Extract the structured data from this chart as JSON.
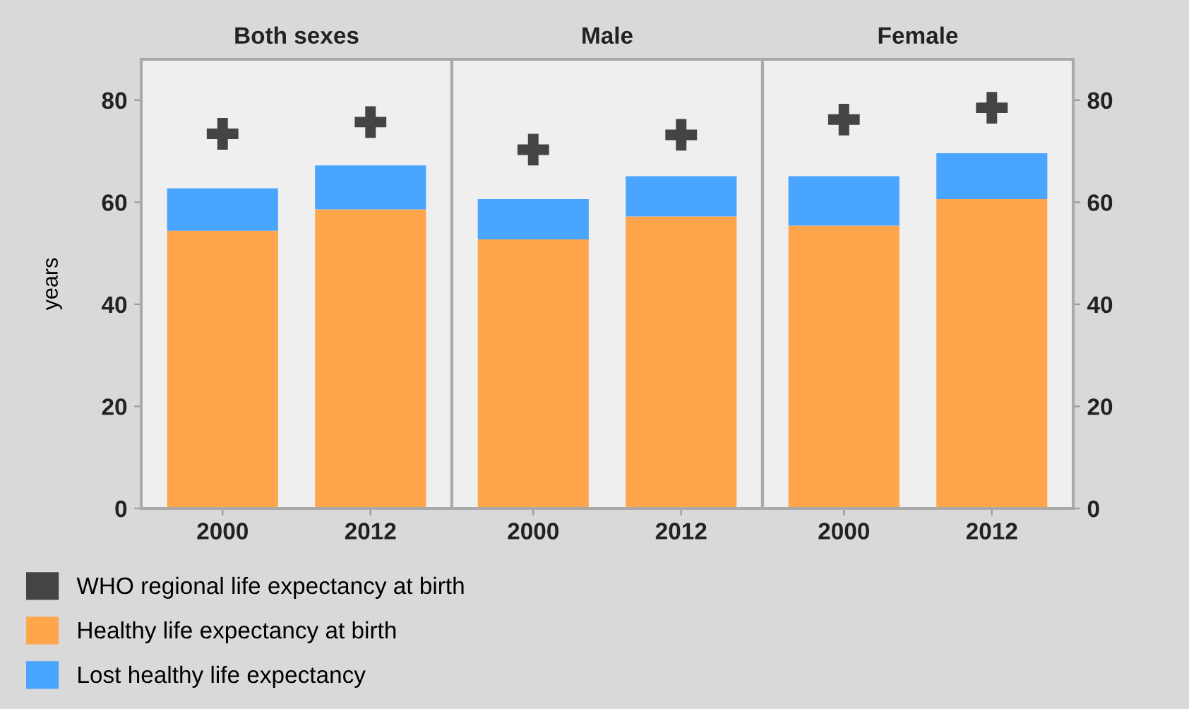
{
  "chart_data": [
    {
      "type": "bar",
      "title": "Both sexes",
      "ylabel": "years",
      "categories": [
        "2000",
        "2012"
      ],
      "stacked": true,
      "ylim": [
        0,
        88
      ],
      "yticks": [
        0,
        20,
        40,
        60,
        80
      ],
      "grid": false,
      "legend": "bottom",
      "series": [
        {
          "name": "Healthy life expectancy at birth",
          "color": "#ffa64d",
          "values": [
            54.4,
            58.6
          ]
        },
        {
          "name": "Lost healthy life expectancy",
          "color": "#4aa5ff",
          "values": [
            8.3,
            8.6
          ]
        },
        {
          "name": "WHO regional life expectancy at birth",
          "type": "scatter",
          "marker": "cross",
          "color": "#444444",
          "values": [
            73.4,
            75.7
          ]
        }
      ]
    },
    {
      "type": "bar",
      "title": "Male",
      "categories": [
        "2000",
        "2012"
      ],
      "stacked": true,
      "ylim": [
        0,
        88
      ],
      "tick_labels": "x",
      "grid": false,
      "series": [
        {
          "color": "#ffa64d",
          "values": [
            52.7,
            57.2
          ]
        },
        {
          "color": "#4aa5ff",
          "values": [
            7.9,
            7.9
          ]
        },
        {
          "type": "scatter",
          "marker": "cross",
          "color": "#444444",
          "values": [
            70.3,
            73.2
          ]
        }
      ]
    },
    {
      "type": "bar",
      "title": "Female",
      "categories": [
        "2000",
        "2012"
      ],
      "stacked": true,
      "ylim": [
        0,
        88
      ],
      "yticks": [
        0,
        20,
        40,
        60,
        80
      ],
      "grid": false,
      "series": [
        {
          "color": "#ffa64d",
          "values": [
            55.4,
            60.6
          ]
        },
        {
          "color": "#4aa5ff",
          "values": [
            9.7,
            9.0
          ]
        },
        {
          "type": "scatter",
          "marker": "cross",
          "color": "#444444",
          "values": [
            76.2,
            78.5
          ]
        }
      ]
    }
  ]
}
